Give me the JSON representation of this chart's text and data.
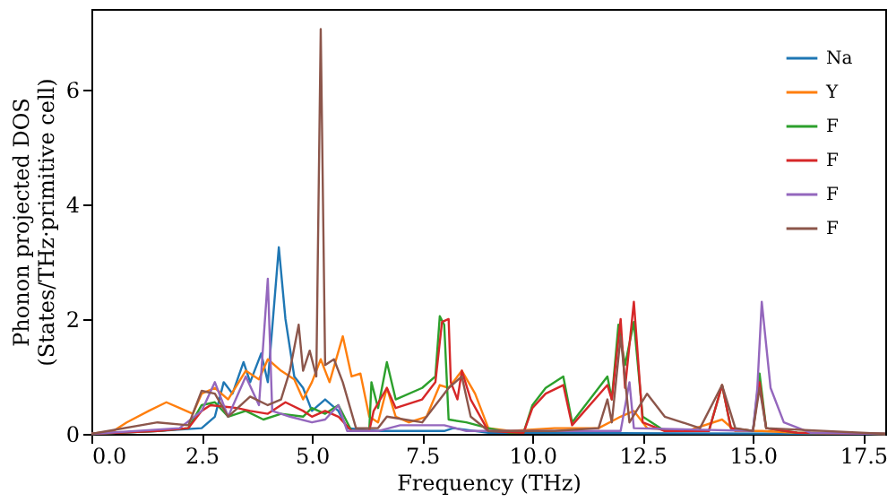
{
  "chart_data": {
    "type": "line",
    "xlabel": "Frequency (THz)",
    "ylabel": "Phonon projected DOS\n(States/THz·primitive cell)",
    "xlim": [
      0,
      18
    ],
    "xticks": [
      {
        "value": 0,
        "label": "0.0"
      },
      {
        "value": 2.5,
        "label": "2.5"
      },
      {
        "value": 5,
        "label": "5.0"
      },
      {
        "value": 7.5,
        "label": "7.5"
      },
      {
        "value": 10,
        "label": "10.0"
      },
      {
        "value": 12.5,
        "label": "12.5"
      },
      {
        "value": 15,
        "label": "15.0"
      },
      {
        "value": 17.5,
        "label": "17.5"
      }
    ],
    "ylim": [
      0,
      7.4
    ],
    "yticks": [
      0,
      2,
      4,
      6
    ],
    "grid": false,
    "legend": "top right",
    "line_style": "solid",
    "marker": "none",
    "series": [
      {
        "name": "Na",
        "color": "#1f77b4",
        "x": [
          0,
          1.5,
          2.5,
          2.8,
          3.0,
          3.2,
          3.45,
          3.6,
          3.85,
          4.0,
          4.25,
          4.4,
          4.6,
          4.8,
          5.0,
          5.3,
          5.6,
          5.8,
          6.5,
          8.0,
          8.2,
          9.0,
          18
        ],
        "values": [
          0,
          0.05,
          0.1,
          0.3,
          0.9,
          0.7,
          1.25,
          0.9,
          1.4,
          0.9,
          3.25,
          2.0,
          1.0,
          0.8,
          0.4,
          0.6,
          0.4,
          0.1,
          0.05,
          0.05,
          0.1,
          0.02,
          0
        ]
      },
      {
        "name": "Y",
        "color": "#ff7f0e",
        "x": [
          0,
          0.5,
          0.8,
          1.3,
          1.7,
          2.0,
          2.3,
          2.5,
          2.8,
          3.1,
          3.5,
          3.8,
          4.0,
          4.3,
          4.6,
          4.8,
          5.0,
          5.2,
          5.4,
          5.7,
          5.9,
          6.1,
          6.3,
          6.5,
          6.7,
          6.9,
          7.2,
          7.6,
          7.9,
          8.1,
          8.4,
          8.7,
          9.0,
          9.5,
          10.5,
          11.5,
          12.0,
          12.3,
          12.6,
          13.5,
          14.3,
          14.6,
          15.2,
          16.0,
          18
        ],
        "values": [
          0,
          0.05,
          0.2,
          0.4,
          0.55,
          0.45,
          0.35,
          0.7,
          0.8,
          0.6,
          1.1,
          0.95,
          1.3,
          1.1,
          0.95,
          0.6,
          0.9,
          1.3,
          0.9,
          1.7,
          1.0,
          1.05,
          0.3,
          0.2,
          0.8,
          0.3,
          0.2,
          0.3,
          0.85,
          0.8,
          1.1,
          0.7,
          0.1,
          0.05,
          0.1,
          0.1,
          0.3,
          0.4,
          0.1,
          0.05,
          0.25,
          0.05,
          0.05,
          0.02,
          0
        ]
      },
      {
        "name": "F",
        "color": "#2ca02c",
        "x": [
          0,
          1.5,
          2.2,
          2.5,
          2.8,
          3.1,
          3.5,
          3.9,
          4.3,
          4.8,
          5.0,
          5.3,
          5.6,
          5.9,
          6.3,
          6.35,
          6.5,
          6.7,
          6.9,
          7.5,
          7.8,
          7.9,
          8.0,
          8.1,
          8.5,
          9.0,
          9.5,
          9.8,
          10.0,
          10.3,
          10.7,
          10.9,
          11.2,
          11.7,
          11.8,
          11.95,
          12.1,
          12.3,
          12.5,
          13.0,
          14.0,
          14.3,
          14.5,
          15.0,
          15.15,
          15.3,
          16.0,
          18
        ],
        "values": [
          0,
          0.05,
          0.1,
          0.5,
          0.55,
          0.3,
          0.4,
          0.25,
          0.35,
          0.3,
          0.45,
          0.35,
          0.5,
          0.05,
          0.05,
          0.9,
          0.45,
          1.25,
          0.6,
          0.8,
          1.0,
          2.05,
          1.9,
          0.25,
          0.2,
          0.1,
          0.02,
          0.02,
          0.5,
          0.8,
          1.0,
          0.2,
          0.5,
          1.0,
          0.6,
          1.9,
          1.2,
          1.95,
          0.3,
          0.05,
          0.05,
          0.85,
          0.1,
          0.05,
          1.05,
          0.1,
          0.02,
          0
        ]
      },
      {
        "name": "F",
        "color": "#d62728",
        "x": [
          0,
          1.5,
          2.2,
          2.5,
          2.7,
          3.3,
          3.6,
          4.0,
          4.4,
          4.8,
          5.0,
          5.3,
          5.6,
          5.9,
          6.3,
          6.4,
          6.7,
          6.9,
          7.5,
          7.8,
          7.95,
          8.1,
          8.15,
          8.3,
          8.4,
          8.6,
          9.0,
          9.8,
          10.0,
          10.3,
          10.7,
          10.9,
          11.7,
          11.8,
          12.0,
          12.1,
          12.3,
          12.5,
          13.0,
          14.0,
          14.3,
          14.5,
          15.0,
          15.15,
          15.3,
          16.0,
          18
        ],
        "values": [
          0,
          0.05,
          0.1,
          0.4,
          0.5,
          0.45,
          0.4,
          0.35,
          0.55,
          0.4,
          0.3,
          0.4,
          0.3,
          0.05,
          0.05,
          0.4,
          0.8,
          0.45,
          0.6,
          0.9,
          1.95,
          2.0,
          0.9,
          0.6,
          1.1,
          0.6,
          0.05,
          0.02,
          0.45,
          0.7,
          0.85,
          0.15,
          0.85,
          0.6,
          2.0,
          0.8,
          2.3,
          0.2,
          0.05,
          0.05,
          0.85,
          0.1,
          0.05,
          0.9,
          0.1,
          0.02,
          0
        ]
      },
      {
        "name": "F",
        "color": "#9467bd",
        "x": [
          0,
          2.0,
          2.5,
          2.8,
          3.1,
          3.5,
          3.8,
          4.0,
          4.1,
          4.5,
          5.0,
          5.3,
          5.6,
          5.8,
          6.5,
          7.0,
          8.0,
          8.5,
          12.0,
          12.2,
          12.3,
          15.0,
          15.1,
          15.2,
          15.4,
          15.7,
          16.3,
          18
        ],
        "values": [
          0,
          0.1,
          0.4,
          0.9,
          0.3,
          1.0,
          0.5,
          2.7,
          0.4,
          0.3,
          0.2,
          0.25,
          0.5,
          0.05,
          0.05,
          0.15,
          0.15,
          0.05,
          0.05,
          0.9,
          0.1,
          0.05,
          0.8,
          2.3,
          0.8,
          0.2,
          0.02,
          0
        ]
      },
      {
        "name": "F",
        "color": "#8c564b",
        "x": [
          0,
          1.5,
          2.2,
          2.5,
          2.8,
          3.1,
          3.6,
          4.0,
          4.3,
          4.5,
          4.7,
          4.8,
          4.95,
          5.1,
          5.2,
          5.3,
          5.5,
          5.7,
          6.0,
          6.5,
          6.7,
          7.5,
          8.0,
          8.1,
          8.4,
          8.6,
          9.0,
          10.5,
          11.5,
          11.7,
          11.8,
          12.0,
          12.2,
          12.6,
          13.0,
          13.8,
          14.3,
          14.6,
          15.0,
          15.15,
          15.3,
          18
        ],
        "values": [
          0,
          0.2,
          0.15,
          0.75,
          0.7,
          0.3,
          0.65,
          0.5,
          0.6,
          1.1,
          1.9,
          1.1,
          1.45,
          1.0,
          7.05,
          1.2,
          1.3,
          0.9,
          0.1,
          0.1,
          0.3,
          0.2,
          0.7,
          0.8,
          1.0,
          0.3,
          0.05,
          0.05,
          0.1,
          0.6,
          0.2,
          1.7,
          0.2,
          0.7,
          0.3,
          0.1,
          0.85,
          0.1,
          0.05,
          0.8,
          0.1,
          0
        ]
      }
    ]
  }
}
